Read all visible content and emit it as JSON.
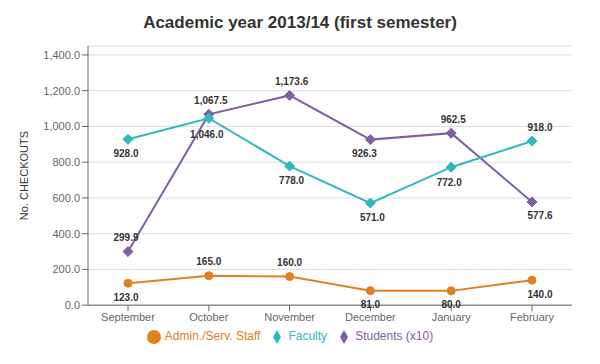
{
  "chart_data": {
    "type": "line",
    "title": "Academic year 2013/14 (first semester)",
    "ylabel": "No.  CHECKOUTS",
    "categories": [
      "September",
      "October",
      "November",
      "December",
      "January",
      "February"
    ],
    "series": [
      {
        "name": "Students (x10)",
        "color": "#8060a0",
        "marker": "diamond",
        "values": [
          299.9,
          1067.5,
          1173.6,
          926.3,
          962.5,
          577.6
        ],
        "value_labels": [
          "299.9",
          "1,067.5",
          "1,173.6",
          "926.3",
          "962.5",
          "577.6"
        ]
      },
      {
        "name": "Faculty",
        "color": "#30b8c0",
        "marker": "diamond",
        "values": [
          928.0,
          1046.0,
          778.0,
          571.0,
          772.0,
          918.0
        ],
        "value_labels": [
          "928.0",
          "1,046.0",
          "778.0",
          "571.0",
          "772.0",
          "918.0"
        ]
      },
      {
        "name": "Admin./Serv. Staff",
        "color": "#e08020",
        "marker": "circle",
        "values": [
          123.0,
          165.0,
          160.0,
          81.0,
          80.0,
          140.0
        ],
        "value_labels": [
          "123.0",
          "165.0",
          "160.0",
          "81.0",
          "80.0",
          "140.0"
        ]
      }
    ],
    "ylim": [
      0,
      1450
    ],
    "yticks": [
      {
        "value": 0,
        "label": "0.0"
      },
      {
        "value": 200,
        "label": "200.0"
      },
      {
        "value": 400,
        "label": "400.0"
      },
      {
        "value": 600,
        "label": "600.0"
      },
      {
        "value": 800,
        "label": "800.0"
      },
      {
        "value": 1000,
        "label": "1,000.0"
      },
      {
        "value": 1200,
        "label": "1,200.0"
      },
      {
        "value": 1400,
        "label": "1,400.0"
      }
    ],
    "grid": true,
    "legend": "bottom",
    "data_labels": true
  }
}
